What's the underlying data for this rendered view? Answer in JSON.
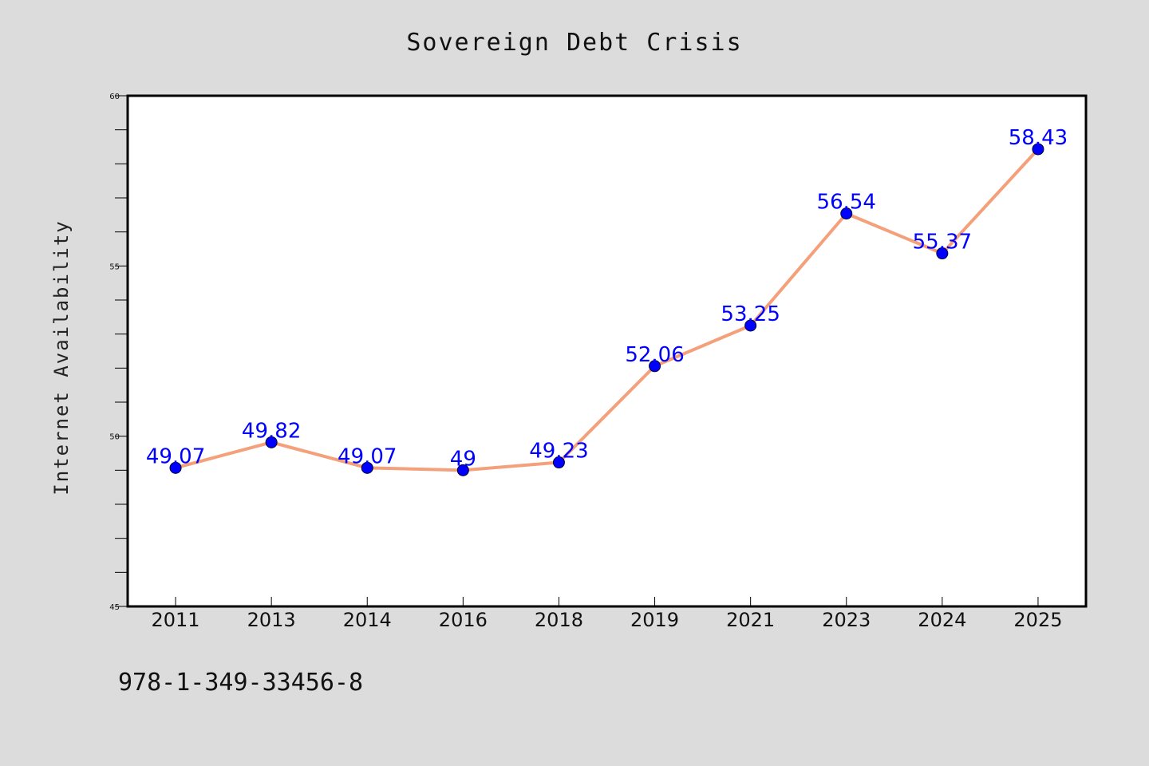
{
  "chart_data": {
    "type": "line",
    "title": "Sovereign Debt Crisis",
    "xlabel": "",
    "ylabel": "Internet Availability",
    "categories": [
      "2011",
      "2013",
      "2014",
      "2016",
      "2018",
      "2019",
      "2021",
      "2023",
      "2024",
      "2025"
    ],
    "values": [
      49.07,
      49.82,
      49.07,
      49,
      49.23,
      52.06,
      53.25,
      56.54,
      55.37,
      58.43
    ],
    "data_labels": [
      "49.07",
      "49.82",
      "49.07",
      "49",
      "49.23",
      "52.06",
      "53.25",
      "56.54",
      "55.37",
      "58.43"
    ],
    "ylim": [
      45,
      60
    ],
    "y_major_ticks": [
      "45",
      "50",
      "55",
      "60"
    ],
    "grid": false,
    "legend": "none",
    "line_color": "#f4a07a",
    "marker_color": "#0000ff",
    "label_color": "#0000ff",
    "plot_background": "#ffffff",
    "figure_background": "#dcdcdc"
  },
  "footer": {
    "isbn": "978-1-349-33456-8"
  }
}
